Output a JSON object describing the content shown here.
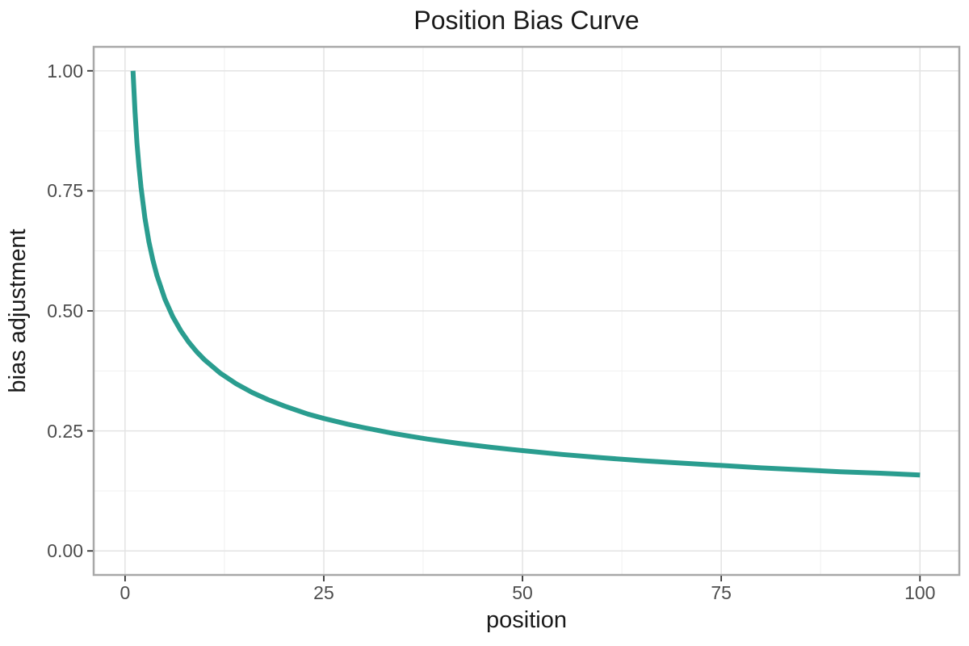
{
  "chart_data": {
    "type": "line",
    "title": "Position Bias Curve",
    "xlabel": "position",
    "ylabel": "bias adjustment",
    "x_range": [
      1,
      100
    ],
    "y_range": [
      0,
      1
    ],
    "x_ticks": [
      {
        "value": 0,
        "label": "0"
      },
      {
        "value": 25,
        "label": "25"
      },
      {
        "value": 50,
        "label": "50"
      },
      {
        "value": 75,
        "label": "75"
      },
      {
        "value": 100,
        "label": "100"
      }
    ],
    "y_ticks": [
      {
        "value": 0.0,
        "label": "0.00"
      },
      {
        "value": 0.25,
        "label": "0.25"
      },
      {
        "value": 0.5,
        "label": "0.50"
      },
      {
        "value": 0.75,
        "label": "0.75"
      },
      {
        "value": 1.0,
        "label": "1.00"
      }
    ],
    "x_minor_ticks": [
      12.5,
      37.5,
      62.5,
      87.5
    ],
    "y_minor_ticks": [
      0.125,
      0.375,
      0.625,
      0.875
    ],
    "grid": true,
    "legend": "none",
    "series": [
      {
        "x": [
          1,
          1.25,
          1.5,
          1.75,
          2,
          2.5,
          3,
          3.5,
          4,
          5,
          6,
          7,
          8,
          9,
          10,
          12,
          14,
          16,
          18,
          20,
          23,
          25,
          28,
          30,
          34,
          38,
          42,
          46,
          50,
          55,
          60,
          65,
          70,
          75,
          80,
          85,
          90,
          95,
          100
        ],
        "y": [
          1.0,
          0.915,
          0.85,
          0.8,
          0.758,
          0.693,
          0.644,
          0.606,
          0.574,
          0.525,
          0.488,
          0.459,
          0.435,
          0.415,
          0.398,
          0.37,
          0.348,
          0.33,
          0.315,
          0.302,
          0.285,
          0.276,
          0.264,
          0.257,
          0.244,
          0.233,
          0.224,
          0.216,
          0.209,
          0.201,
          0.194,
          0.188,
          0.183,
          0.178,
          0.173,
          0.169,
          0.165,
          0.162,
          0.158
        ]
      }
    ],
    "colors": {
      "line": "#2a9d8f",
      "grid_major": "#e3e3e3",
      "grid_minor": "#f0f0f0",
      "panel_border": "#a8a8a8",
      "tick_mark": "#333333",
      "tick_label": "#4d4d4d",
      "text": "#1a1a1a",
      "background": "#ffffff"
    }
  }
}
